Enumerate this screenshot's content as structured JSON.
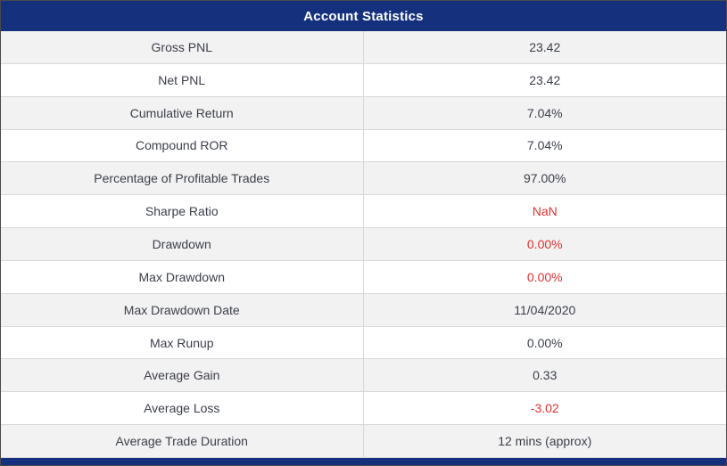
{
  "title": "Account Statistics",
  "colors": {
    "header_bg": "#15317E",
    "row_alt_bg": "#f2f2f2",
    "text": "#3b3f4a",
    "negative": "#e03131"
  },
  "table": {
    "rows": [
      {
        "label": "Gross PNL",
        "value": "23.42",
        "negative": false
      },
      {
        "label": "Net PNL",
        "value": "23.42",
        "negative": false
      },
      {
        "label": "Cumulative Return",
        "value": "7.04%",
        "negative": false
      },
      {
        "label": "Compound ROR",
        "value": "7.04%",
        "negative": false
      },
      {
        "label": "Percentage of Profitable Trades",
        "value": "97.00%",
        "negative": false
      },
      {
        "label": "Sharpe Ratio",
        "value": "NaN",
        "negative": true
      },
      {
        "label": "Drawdown",
        "value": "0.00%",
        "negative": true
      },
      {
        "label": "Max Drawdown",
        "value": "0.00%",
        "negative": true
      },
      {
        "label": "Max Drawdown Date",
        "value": "11/04/2020",
        "negative": false
      },
      {
        "label": "Max Runup",
        "value": "0.00%",
        "negative": false
      },
      {
        "label": "Average Gain",
        "value": "0.33",
        "negative": false
      },
      {
        "label": "Average Loss",
        "value": "-3.02",
        "negative": true
      },
      {
        "label": "Average Trade Duration",
        "value": "12 mins (approx)",
        "negative": false
      }
    ]
  }
}
